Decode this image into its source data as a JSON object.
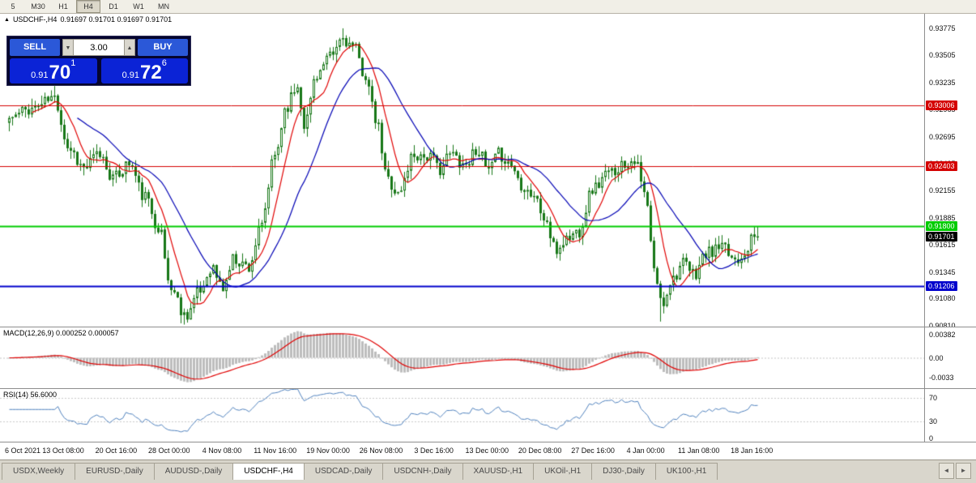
{
  "toolbar": {
    "timeframes": [
      {
        "label": "5",
        "active": false
      },
      {
        "label": "M30",
        "active": false
      },
      {
        "label": "H1",
        "active": false
      },
      {
        "label": "H4",
        "active": true
      },
      {
        "label": "D1",
        "active": false
      },
      {
        "label": "W1",
        "active": false
      },
      {
        "label": "MN",
        "active": false
      }
    ]
  },
  "ui": {
    "title": {
      "symbol": "USDCHF-,H4",
      "ohlc": "0.91697 0.91701 0.91697 0.91701"
    },
    "trade_panel": {
      "sell_label": "SELL",
      "buy_label": "BUY",
      "lot": "3.00",
      "sell_price": {
        "prefix": "0.91",
        "big": "70",
        "sup": "1"
      },
      "buy_price": {
        "prefix": "0.91",
        "big": "72",
        "sup": "6"
      }
    }
  },
  "chart_data": {
    "type": "candlestick",
    "symbol": "USDCHF-",
    "timeframe": "H4",
    "title": "USDCHF-,H4",
    "ohlc_display": "0.91697 0.91701 0.91697 0.91701",
    "last_close": 0.91701,
    "bar_count": 232,
    "ylim": [
      0.908,
      0.9392
    ],
    "y_ticks": [
      "0.93775",
      "0.93505",
      "0.93235",
      "0.92965",
      "0.92695",
      "0.92425",
      "0.92155",
      "0.91885",
      "0.91615",
      "0.91345",
      "0.91080",
      "0.90810"
    ],
    "x_labels": [
      "6 Oct 2021",
      "13 Oct 08:00",
      "20 Oct 16:00",
      "28 Oct 00:00",
      "4 Nov 08:00",
      "11 Nov 16:00",
      "19 Nov 00:00",
      "26 Nov 08:00",
      "3 Dec 16:00",
      "13 Dec 00:00",
      "20 Dec 08:00",
      "27 Dec 16:00",
      "4 Jan 00:00",
      "11 Jan 08:00",
      "18 Jan 16:00"
    ],
    "price_path": [
      [
        0.0,
        0.9288
      ],
      [
        0.03,
        0.9298
      ],
      [
        0.06,
        0.9308
      ],
      [
        0.08,
        0.9258
      ],
      [
        0.1,
        0.9238
      ],
      [
        0.12,
        0.9252
      ],
      [
        0.14,
        0.9228
      ],
      [
        0.16,
        0.9243
      ],
      [
        0.18,
        0.921
      ],
      [
        0.2,
        0.918
      ],
      [
        0.215,
        0.912
      ],
      [
        0.235,
        0.9092
      ],
      [
        0.255,
        0.9115
      ],
      [
        0.27,
        0.914
      ],
      [
        0.285,
        0.9118
      ],
      [
        0.3,
        0.9148
      ],
      [
        0.32,
        0.914
      ],
      [
        0.335,
        0.9175
      ],
      [
        0.355,
        0.925
      ],
      [
        0.37,
        0.93
      ],
      [
        0.385,
        0.932
      ],
      [
        0.395,
        0.9282
      ],
      [
        0.41,
        0.9332
      ],
      [
        0.43,
        0.9348
      ],
      [
        0.445,
        0.9368
      ],
      [
        0.46,
        0.9358
      ],
      [
        0.475,
        0.9332
      ],
      [
        0.49,
        0.9285
      ],
      [
        0.505,
        0.9228
      ],
      [
        0.52,
        0.9212
      ],
      [
        0.54,
        0.9252
      ],
      [
        0.56,
        0.925
      ],
      [
        0.575,
        0.9238
      ],
      [
        0.59,
        0.9252
      ],
      [
        0.61,
        0.9242
      ],
      [
        0.625,
        0.9258
      ],
      [
        0.64,
        0.9235
      ],
      [
        0.655,
        0.9252
      ],
      [
        0.67,
        0.9242
      ],
      [
        0.685,
        0.9222
      ],
      [
        0.7,
        0.9212
      ],
      [
        0.715,
        0.9188
      ],
      [
        0.73,
        0.9155
      ],
      [
        0.745,
        0.9168
      ],
      [
        0.76,
        0.9175
      ],
      [
        0.78,
        0.9218
      ],
      [
        0.8,
        0.9232
      ],
      [
        0.82,
        0.9242
      ],
      [
        0.835,
        0.9248
      ],
      [
        0.85,
        0.921
      ],
      [
        0.862,
        0.9135
      ],
      [
        0.872,
        0.9102
      ],
      [
        0.885,
        0.9128
      ],
      [
        0.9,
        0.9142
      ],
      [
        0.915,
        0.9132
      ],
      [
        0.93,
        0.9152
      ],
      [
        0.95,
        0.9158
      ],
      [
        0.97,
        0.9148
      ],
      [
        1.0,
        0.91701
      ]
    ],
    "candle_up_color": "#ffffff",
    "candle_down_color": "#17771 7",
    "candle_border_color": "#177717",
    "moving_averages": [
      {
        "period": 8,
        "color": "#e00000"
      },
      {
        "period": 22,
        "color": "#0000b4"
      }
    ],
    "hlines": [
      {
        "price": 0.93006,
        "label": "0.93006",
        "color": "#d40000",
        "width": 1,
        "text_color": "#ffffff"
      },
      {
        "price": 0.92403,
        "label": "0.92403",
        "color": "#d40000",
        "width": 1,
        "text_color": "#ffffff"
      },
      {
        "price": 0.918,
        "label": "0.91800",
        "color": "#00cc00",
        "width": 2,
        "text_color": "#ffffff"
      },
      {
        "price": 0.91206,
        "label": "0.91206",
        "color": "#0000cc",
        "width": 2,
        "text_color": "#ffffff"
      }
    ],
    "current_price": {
      "price": 0.91701,
      "label": "0.91701",
      "bg": "#000000",
      "fg": "#ffffff"
    },
    "indicators": [
      {
        "name": "MACD",
        "label": "MACD(12,26,9) 0.000252 0.000057",
        "y_ticks": [
          "0.00382",
          "0.00",
          "-0.0033"
        ],
        "tick_values": [
          0.00382,
          0,
          -0.0033
        ],
        "range": [
          -0.005,
          0.005
        ],
        "histogram_color": "#bdbdbd",
        "signal_color": "#e00000"
      },
      {
        "name": "RSI",
        "label": "RSI(14) 56.6000",
        "y_ticks": [
          "70",
          "30",
          "0"
        ],
        "tick_values": [
          70,
          30,
          0
        ],
        "range": [
          -5,
          85
        ],
        "line_color": "#4f81bd",
        "levels": [
          70,
          30
        ]
      }
    ]
  },
  "tabs": [
    {
      "label": "USDX,Weekly",
      "active": false
    },
    {
      "label": "EURUSD-,Daily",
      "active": false
    },
    {
      "label": "AUDUSD-,Daily",
      "active": false
    },
    {
      "label": "USDCHF-,H4",
      "active": true
    },
    {
      "label": "USDCAD-,Daily",
      "active": false
    },
    {
      "label": "USDCNH-,Daily",
      "active": false
    },
    {
      "label": "XAUUSD-,H1",
      "active": false
    },
    {
      "label": "UKOil-,H1",
      "active": false
    },
    {
      "label": "DJ30-,Daily",
      "active": false
    },
    {
      "label": "UK100-,H1",
      "active": false
    }
  ],
  "tab_scroll": {
    "left": "◄",
    "right": "►"
  }
}
